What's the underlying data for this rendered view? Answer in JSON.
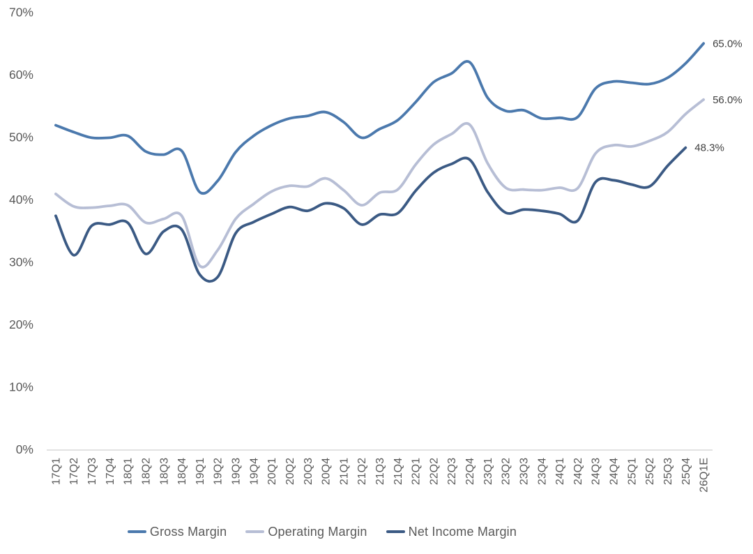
{
  "chart_data": {
    "type": "line",
    "title": "",
    "xlabel": "",
    "ylabel": "",
    "line_style": "smoothed",
    "grid": false,
    "legend_position": "bottom",
    "ylim": [
      0,
      70
    ],
    "ytick_step": 10,
    "ytick_labels": [
      "0%",
      "10%",
      "20%",
      "30%",
      "40%",
      "50%",
      "60%",
      "70%"
    ],
    "categories": [
      "17Q1",
      "17Q2",
      "17Q3",
      "17Q4",
      "18Q1",
      "18Q2",
      "18Q3",
      "18Q4",
      "19Q1",
      "19Q2",
      "19Q3",
      "19Q4",
      "20Q1",
      "20Q2",
      "20Q3",
      "20Q4",
      "21Q1",
      "21Q2",
      "21Q3",
      "21Q4",
      "22Q1",
      "22Q2",
      "22Q3",
      "22Q4",
      "23Q1",
      "23Q2",
      "23Q3",
      "23Q4",
      "24Q1",
      "24Q2",
      "24Q3",
      "24Q4",
      "25Q1",
      "25Q2",
      "25Q3",
      "25Q4",
      "26Q1E"
    ],
    "series": [
      {
        "name": "Gross Margin",
        "color": "#4b79ad",
        "end_label": "65.0%",
        "values": [
          51.9,
          50.8,
          49.9,
          49.9,
          50.2,
          47.7,
          47.2,
          47.8,
          41.2,
          43.0,
          47.6,
          50.2,
          51.9,
          53.0,
          53.4,
          54.0,
          52.4,
          49.9,
          51.3,
          52.7,
          55.6,
          58.8,
          60.2,
          62.0,
          56.3,
          54.2,
          54.3,
          53.0,
          53.1,
          53.2,
          57.8,
          58.9,
          58.7,
          58.5,
          59.5,
          61.8,
          65.0
        ]
      },
      {
        "name": "Operating Margin",
        "color": "#b7bed5",
        "end_label": "56.0%",
        "values": [
          40.9,
          38.9,
          38.7,
          39.0,
          39.1,
          36.3,
          36.9,
          37.4,
          29.4,
          31.9,
          36.9,
          39.3,
          41.3,
          42.2,
          42.1,
          43.4,
          41.5,
          39.1,
          41.1,
          41.6,
          45.6,
          48.8,
          50.5,
          52.0,
          45.8,
          41.9,
          41.6,
          41.5,
          41.9,
          41.8,
          47.4,
          48.7,
          48.5,
          49.4,
          50.8,
          53.7,
          56.0
        ]
      },
      {
        "name": "Net Income Margin",
        "color": "#3b5a84",
        "end_label": "48.3%",
        "values": [
          37.4,
          31.1,
          35.8,
          36.0,
          36.3,
          31.3,
          34.9,
          35.2,
          28.0,
          27.6,
          34.6,
          36.4,
          37.7,
          38.8,
          38.2,
          39.4,
          38.6,
          36.0,
          37.6,
          37.8,
          41.4,
          44.3,
          45.7,
          46.4,
          41.2,
          37.9,
          38.4,
          38.2,
          37.7,
          36.6,
          42.8,
          43.1,
          42.4,
          42.1,
          45.4,
          48.3,
          null
        ]
      }
    ],
    "colors": {
      "axis_line": "#d9d9d9",
      "tick_label": "#595959",
      "end_label": "#3f3f3f",
      "background": "#ffffff"
    }
  }
}
